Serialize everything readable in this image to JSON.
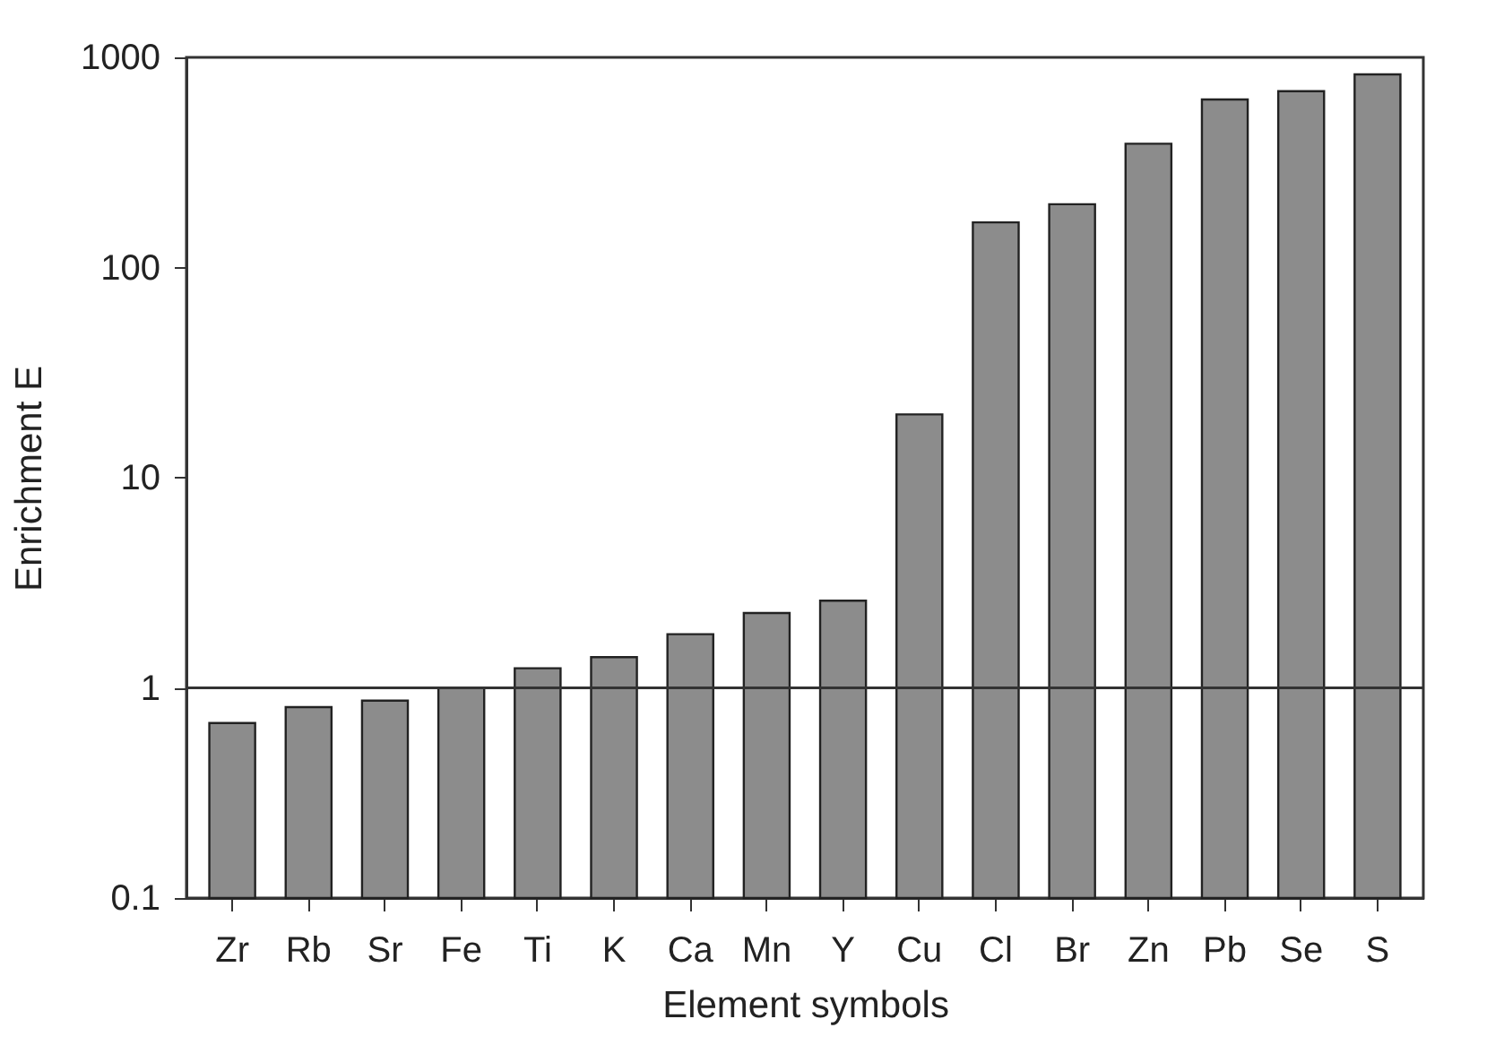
{
  "chart_data": {
    "type": "bar",
    "xlabel": "Element symbols",
    "ylabel": "Enrichment E",
    "categories": [
      "Zr",
      "Rb",
      "Sr",
      "Fe",
      "Ti",
      "K",
      "Ca",
      "Mn",
      "Y",
      "Cu",
      "Cl",
      "Br",
      "Zn",
      "Pb",
      "Se",
      "S"
    ],
    "values": [
      0.68,
      0.81,
      0.87,
      1.0,
      1.24,
      1.4,
      1.8,
      2.27,
      2.6,
      20,
      164,
      200,
      388,
      630,
      690,
      830
    ],
    "color": "#8c8c8c",
    "log": true,
    "ylim": [
      0.1,
      1000
    ],
    "yticks": [
      0.1,
      1,
      10,
      100,
      1000
    ],
    "grid": false,
    "ref_lines": [
      {
        "axis": "y",
        "value": 1,
        "label": null,
        "color": "#333333"
      }
    ]
  }
}
